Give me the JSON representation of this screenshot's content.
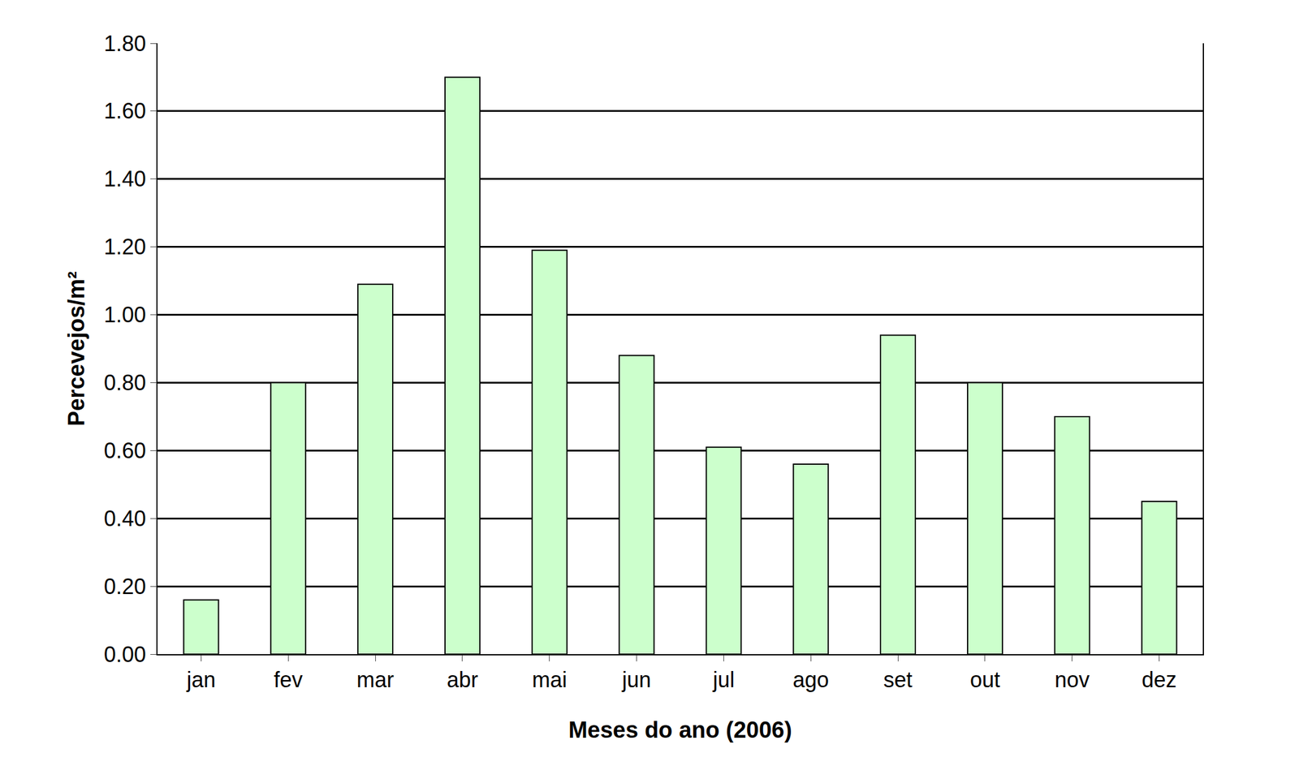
{
  "chart_data": {
    "type": "bar",
    "x_label": "Meses do ano (2006)",
    "y_label": "Percevejos/m²",
    "categories": [
      "jan",
      "fev",
      "mar",
      "abr",
      "mai",
      "jun",
      "jul",
      "ago",
      "set",
      "out",
      "nov",
      "dez"
    ],
    "values": [
      0.16,
      0.8,
      1.09,
      1.7,
      1.19,
      0.88,
      0.61,
      0.56,
      0.94,
      0.8,
      0.7,
      0.45
    ],
    "color": "#ccffcc",
    "ylim": [
      0,
      1.8
    ],
    "yticks": [
      {
        "value": 0,
        "label": "0.00"
      },
      {
        "value": 0.2,
        "label": "0.20"
      },
      {
        "value": 0.4,
        "label": "0.40"
      },
      {
        "value": 0.6,
        "label": "0.60"
      },
      {
        "value": 0.8,
        "label": "0.80"
      },
      {
        "value": 1.0,
        "label": "1.00"
      },
      {
        "value": 1.2,
        "label": "1.20"
      },
      {
        "value": 1.4,
        "label": "1.40"
      },
      {
        "value": 1.6,
        "label": "1.60"
      },
      {
        "value": 1.8,
        "label": "1.80"
      }
    ],
    "grid": true
  }
}
